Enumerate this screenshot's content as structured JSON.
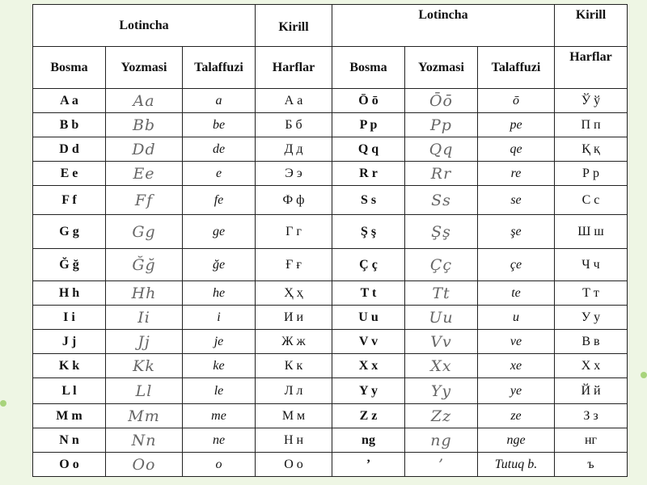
{
  "header": {
    "left_group": "Lotincha",
    "left_kirill": "Kirill",
    "right_group": "Lotincha",
    "right_kirill": "Kirill",
    "columns": [
      "Bosma",
      "Yozmasi",
      "Talaffuzi",
      "Harflar",
      "Bosma",
      "Yozmasi",
      "Talaffuzi",
      "Harflar"
    ]
  },
  "rows": [
    {
      "l": [
        "A a",
        "Aa",
        "a",
        "А а"
      ],
      "r": [
        "Ō ō",
        "Ōō",
        "ō",
        "Ў ў"
      ]
    },
    {
      "l": [
        "B b",
        "Bb",
        "be",
        "Б б"
      ],
      "r": [
        "P p",
        "Pp",
        "pe",
        "П п"
      ]
    },
    {
      "l": [
        "D d",
        "Dd",
        "de",
        "Д д"
      ],
      "r": [
        "Q q",
        "Qq",
        "qe",
        "Қ қ"
      ]
    },
    {
      "l": [
        "E e",
        "Ee",
        "e",
        "Э э"
      ],
      "r": [
        "R r",
        "Rr",
        "re",
        "Р р"
      ]
    },
    {
      "l": [
        "F f",
        "Ff",
        "fe",
        "Ф ф"
      ],
      "r": [
        "S s",
        "Ss",
        "se",
        "С с"
      ]
    },
    {
      "l": [
        "G g",
        "Gg",
        "ge",
        "Г г"
      ],
      "r": [
        "Ş ş",
        "Şş",
        "şe",
        "Ш ш"
      ]
    },
    {
      "l": [
        "Ğ ğ",
        "Ğğ",
        "ğe",
        "Ғ ғ"
      ],
      "r": [
        "Ç ç",
        "Çç",
        "çe",
        "Ч ч"
      ]
    },
    {
      "l": [
        "H h",
        "Hh",
        "he",
        "Ҳ ҳ"
      ],
      "r": [
        "T t",
        "Tt",
        "te",
        "Т т"
      ]
    },
    {
      "l": [
        "I i",
        "Ii",
        "i",
        "И и"
      ],
      "r": [
        "U u",
        "Uu",
        "u",
        "У у"
      ]
    },
    {
      "l": [
        "J j",
        "Jj",
        "je",
        "Ж ж"
      ],
      "r": [
        "V v",
        "Vv",
        "ve",
        "В в"
      ]
    },
    {
      "l": [
        "K k",
        "Kk",
        "ke",
        "К к"
      ],
      "r": [
        "X x",
        "Xx",
        "xe",
        "Х х"
      ]
    },
    {
      "l": [
        "L l",
        "Ll",
        "le",
        "Л л"
      ],
      "r": [
        "Y y",
        "Yy",
        "ye",
        "Й й"
      ]
    },
    {
      "l": [
        "M m",
        "Mm",
        "me",
        "М м"
      ],
      "r": [
        "Z z",
        "Zz",
        "ze",
        "З з"
      ]
    },
    {
      "l": [
        "N n",
        "Nn",
        "ne",
        "Н н"
      ],
      "r": [
        "ng",
        "ng",
        "nge",
        "нг"
      ]
    },
    {
      "l": [
        "O o",
        "Oo",
        "o",
        "О о"
      ],
      "r": [
        "’",
        "’",
        "Tutuq b.",
        "ъ"
      ]
    }
  ]
}
